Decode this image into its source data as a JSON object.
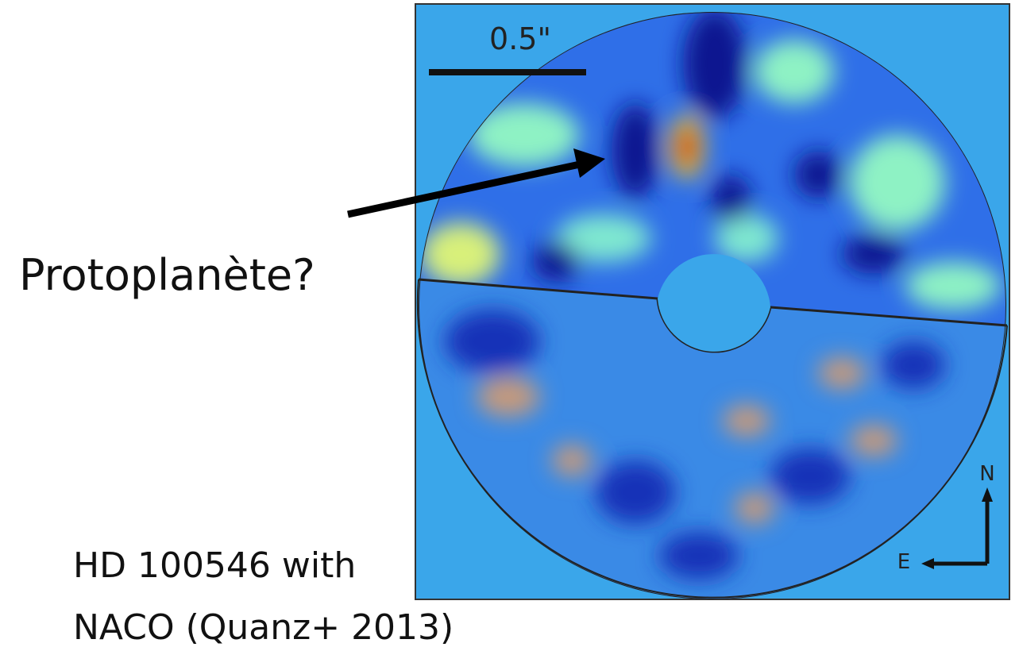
{
  "slide": {
    "label": "Protoplanète?",
    "caption": [
      "HD 100546 with",
      "NACO (Quanz+ 2013)"
    ],
    "image": {
      "scale": "0.5\"",
      "north": "N",
      "east": "E"
    }
  }
}
